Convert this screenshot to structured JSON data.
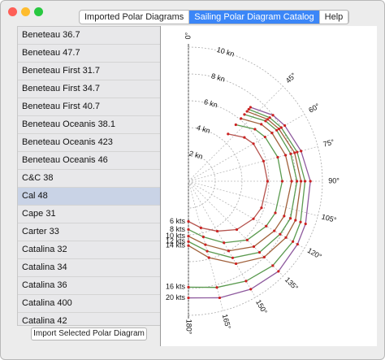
{
  "window": {
    "tabs": [
      "Imported Polar Diagrams",
      "Sailing Polar Diagram Catalog",
      "Help"
    ],
    "active_tab": 1
  },
  "boat_list": {
    "items": [
      "Beneteau 36.7",
      "Beneteau 47.7",
      "Beneteau First 31.7",
      "Beneteau First 34.7",
      "Beneteau First 40.7",
      "Beneteau Oceanis 38.1",
      "Beneteau Oceanis 423",
      "Beneteau Oceanis 46",
      "C&C 38",
      "Cal 48",
      "Cape 31",
      "Carter 33",
      "Catalina 32",
      "Catalina 34",
      "Catalina 36",
      "Catalina 400",
      "Catalina 42"
    ],
    "selected_index": 9
  },
  "import_button": "Import Selected Polar Diagram",
  "chart_data": {
    "type": "polar",
    "theta": [
      40,
      52,
      60,
      75,
      90,
      110,
      120,
      135,
      150,
      165,
      180
    ],
    "thetalim": [
      0,
      180
    ],
    "rlim": [
      0,
      10
    ],
    "rticks": [
      {
        "value": 2,
        "label": "2 kn"
      },
      {
        "value": 4,
        "label": "4 kn"
      },
      {
        "value": 6,
        "label": "6 kn"
      },
      {
        "value": 8,
        "label": "8 kn"
      },
      {
        "value": 10,
        "label": "10 kn"
      }
    ],
    "thetaticks": [
      {
        "value": 0,
        "label": "0°"
      },
      {
        "value": 45,
        "label": "45°"
      },
      {
        "value": 60,
        "label": "60°"
      },
      {
        "value": 75,
        "label": "75°"
      },
      {
        "value": 90,
        "label": "90°"
      },
      {
        "value": 105,
        "label": "105°"
      },
      {
        "value": 120,
        "label": "120°"
      },
      {
        "value": 135,
        "label": "135°"
      },
      {
        "value": 150,
        "label": "150°"
      },
      {
        "value": 165,
        "label": "165°"
      },
      {
        "value": 180,
        "label": "180°"
      }
    ],
    "grid": true,
    "marker_color": "#cc2222",
    "series": [
      {
        "name": "6 kts",
        "color": "#b5534e",
        "values": [
          4.6,
          5.3,
          5.6,
          5.8,
          5.9,
          5.8,
          5.6,
          5.1,
          4.3,
          3.6,
          3.0
        ]
      },
      {
        "name": "8 kts",
        "color": "#5a9a4f",
        "values": [
          5.5,
          6.3,
          6.6,
          6.9,
          7.0,
          6.9,
          6.7,
          6.2,
          5.3,
          4.3,
          3.6
        ]
      },
      {
        "name": "10 kts",
        "color": "#a0603a",
        "values": [
          6.1,
          6.9,
          7.2,
          7.5,
          7.7,
          7.6,
          7.4,
          6.9,
          6.0,
          4.9,
          4.1
        ]
      },
      {
        "name": "12 kts",
        "color": "#5a9a4f",
        "values": [
          6.5,
          7.3,
          7.6,
          7.9,
          8.1,
          8.1,
          7.9,
          7.5,
          6.6,
          5.4,
          4.5
        ]
      },
      {
        "name": "14 kts",
        "color": "#a0603a",
        "values": [
          6.8,
          7.5,
          7.8,
          8.2,
          8.4,
          8.5,
          8.4,
          8.0,
          7.1,
          5.9,
          4.8
        ]
      },
      {
        "name": "16 kts",
        "color": "#5a9a4f",
        "values": [
          7.0,
          7.7,
          8.0,
          8.4,
          8.7,
          8.9,
          9.0,
          8.9,
          8.6,
          8.2,
          7.9
        ]
      },
      {
        "name": "20 kts",
        "color": "#8e5a9e",
        "values": [
          7.2,
          8.0,
          8.3,
          8.7,
          9.1,
          9.3,
          9.4,
          9.5,
          9.3,
          9.0,
          8.7
        ]
      }
    ]
  }
}
